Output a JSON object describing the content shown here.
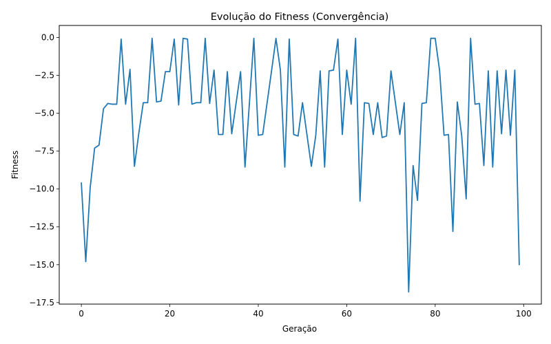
{
  "chart_data": {
    "type": "line",
    "title": "Evolução do Fitness (Convergência)",
    "xlabel": "Geração",
    "ylabel": "Fitness",
    "xlim": [
      -5,
      104
    ],
    "ylim": [
      -17.6,
      0.8
    ],
    "x_ticks": [
      0,
      20,
      40,
      60,
      80,
      100
    ],
    "x_tick_labels": [
      "0",
      "20",
      "40",
      "60",
      "80",
      "100"
    ],
    "y_ticks": [
      0.0,
      -2.5,
      -5.0,
      -7.5,
      -10.0,
      -12.5,
      -15.0,
      -17.5
    ],
    "y_tick_labels": [
      "0.0",
      "−2.5",
      "−5.0",
      "−7.5",
      "−10.0",
      "−12.5",
      "−15.0",
      "−17.5"
    ],
    "grid": false,
    "series": [
      {
        "color": "#1f77b4",
        "x": [
          0,
          1,
          2,
          3,
          4,
          5,
          6,
          7,
          8,
          9,
          10,
          11,
          12,
          13,
          14,
          15,
          16,
          17,
          18,
          19,
          20,
          21,
          22,
          23,
          24,
          25,
          26,
          27,
          28,
          29,
          30,
          31,
          32,
          33,
          34,
          35,
          36,
          37,
          38,
          39,
          40,
          41,
          42,
          43,
          44,
          45,
          46,
          47,
          48,
          49,
          50,
          51,
          52,
          53,
          54,
          55,
          56,
          57,
          58,
          59,
          60,
          61,
          62,
          63,
          64,
          65,
          66,
          67,
          68,
          69,
          70,
          71,
          72,
          73,
          74,
          75,
          76,
          77,
          78,
          79,
          80,
          81,
          82,
          83,
          84,
          85,
          86,
          87,
          88,
          89,
          90,
          91,
          92,
          93,
          94,
          95,
          96,
          97,
          98,
          99
        ],
        "y": [
          -9.6,
          -14.8,
          -9.9,
          -7.3,
          -7.1,
          -4.7,
          -4.35,
          -4.4,
          -4.4,
          -0.1,
          -4.4,
          -2.1,
          -8.5,
          -6.3,
          -4.3,
          -4.3,
          -0.05,
          -4.25,
          -4.2,
          -2.25,
          -2.25,
          -0.1,
          -4.45,
          -0.05,
          -0.1,
          -4.4,
          -4.3,
          -4.3,
          -0.05,
          -4.35,
          -2.15,
          -6.4,
          -6.4,
          -2.25,
          -6.35,
          -4.3,
          -2.25,
          -8.55,
          -4.3,
          -0.05,
          -6.45,
          -6.4,
          -4.3,
          -2.2,
          -0.05,
          -2.15,
          -8.55,
          -0.1,
          -6.4,
          -6.5,
          -4.3,
          -6.4,
          -8.5,
          -6.45,
          -2.2,
          -8.55,
          -2.2,
          -2.15,
          -0.1,
          -6.4,
          -2.15,
          -4.4,
          -0.05,
          -10.8,
          -4.3,
          -4.35,
          -6.4,
          -4.3,
          -6.6,
          -6.5,
          -2.2,
          -4.3,
          -6.4,
          -4.3,
          -16.8,
          -8.45,
          -10.75,
          -4.35,
          -4.3,
          -0.05,
          -0.05,
          -2.2,
          -6.45,
          -6.4,
          -12.8,
          -4.25,
          -6.5,
          -10.65,
          -0.05,
          -4.4,
          -4.35,
          -8.45,
          -2.2,
          -8.55,
          -2.2,
          -6.35,
          -2.15,
          -6.45,
          -2.15,
          -15.0
        ]
      }
    ]
  }
}
